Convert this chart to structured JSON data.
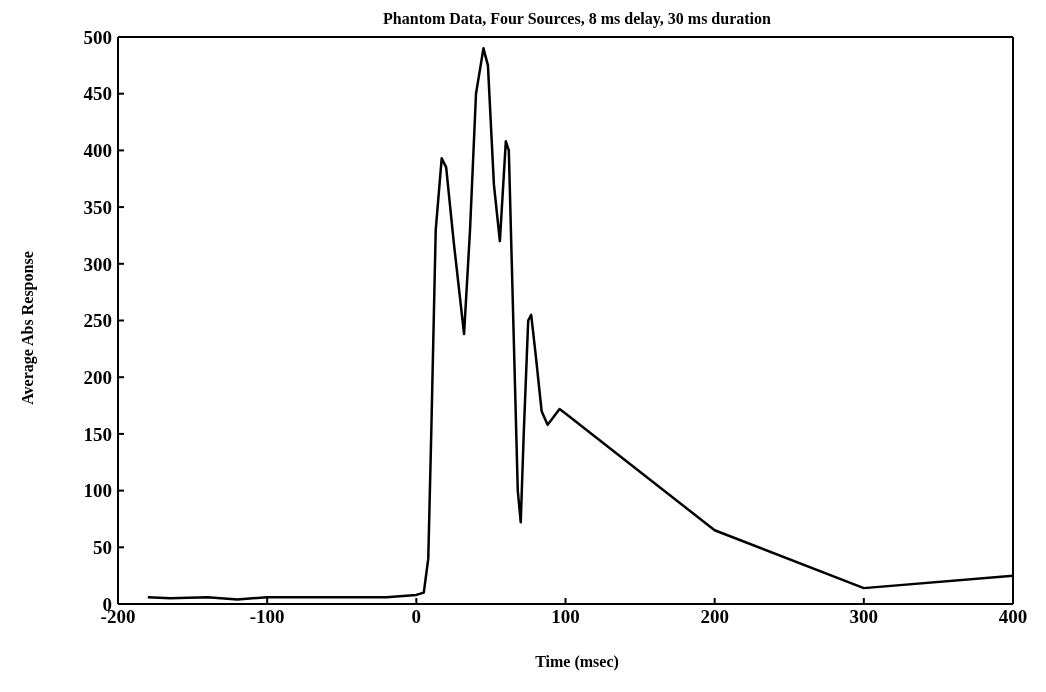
{
  "chart_data": {
    "type": "line",
    "title": "Phantom Data, Four Sources, 8 ms delay, 30 ms duration",
    "xlabel": "Time (msec)",
    "ylabel": "Average Abs Response",
    "x": [
      -180,
      -165,
      -140,
      -120,
      -100,
      -50,
      -20,
      0,
      5,
      8,
      10,
      13,
      17,
      20,
      25,
      32,
      36,
      40,
      45,
      48,
      52,
      56,
      60,
      62,
      65,
      68,
      70,
      72,
      75,
      77,
      80,
      84,
      88,
      92,
      96,
      100,
      200,
      300,
      400
    ],
    "series": [
      {
        "color": "#000000",
        "values": [
          6,
          5,
          6,
          4,
          6,
          6,
          6,
          8,
          10,
          40,
          150,
          330,
          393,
          385,
          320,
          238,
          330,
          450,
          490,
          475,
          370,
          320,
          408,
          400,
          250,
          100,
          72,
          150,
          250,
          255,
          220,
          170,
          158,
          165,
          172,
          168,
          65,
          14,
          25
        ]
      }
    ],
    "xlim": [
      -200,
      400
    ],
    "xticks": [
      -200,
      -100,
      0,
      100,
      200,
      300,
      400
    ],
    "ylim": [
      0,
      500
    ],
    "yticks": [
      0,
      50,
      100,
      150,
      200,
      250,
      300,
      350,
      400,
      450,
      500
    ],
    "grid": false,
    "legend": false,
    "marker": "none",
    "line_style": "solid"
  }
}
